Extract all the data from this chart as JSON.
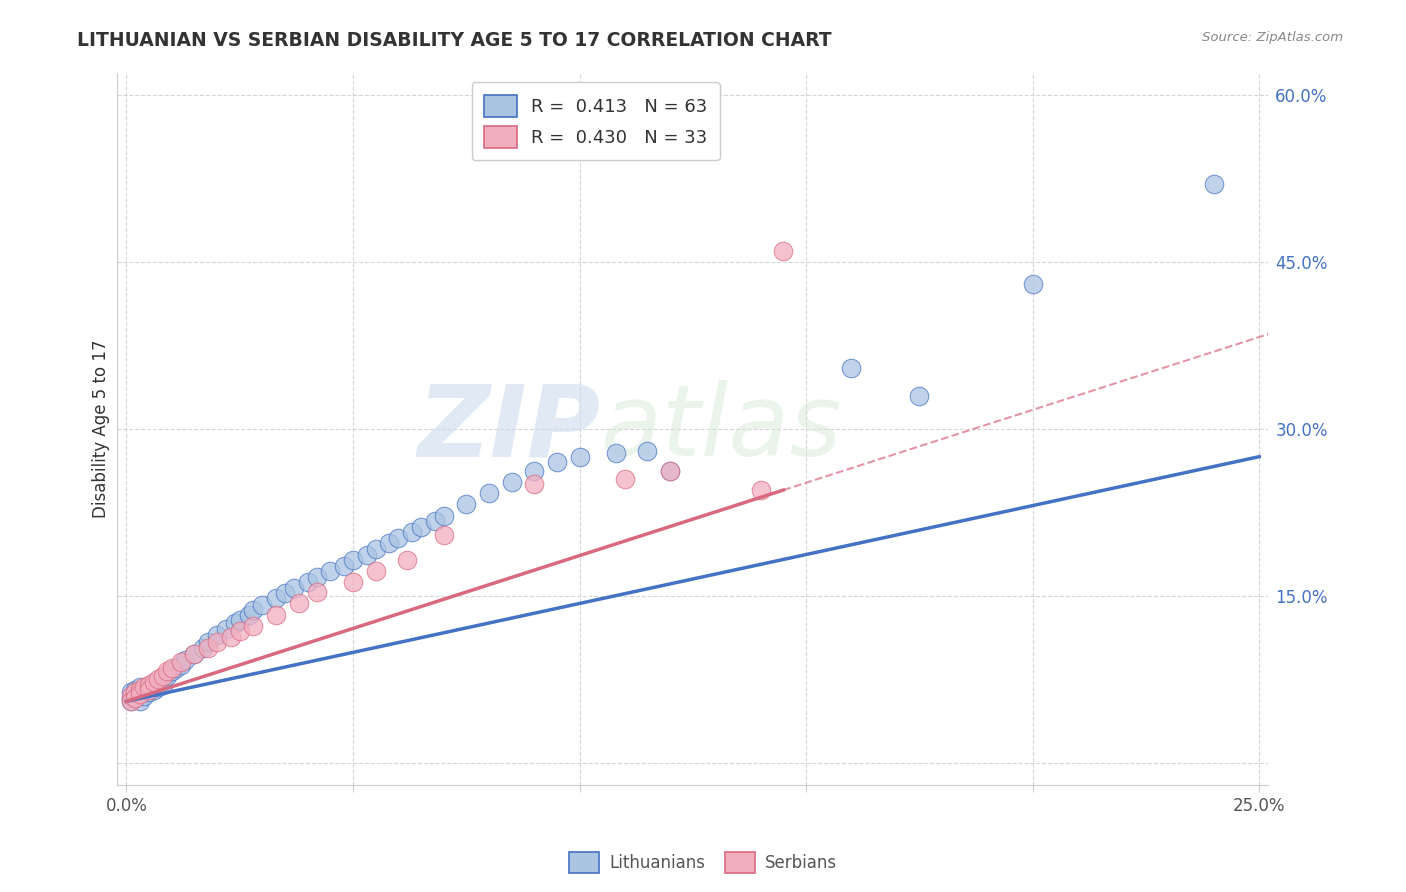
{
  "title": "LITHUANIAN VS SERBIAN DISABILITY AGE 5 TO 17 CORRELATION CHART",
  "source_text": "Source: ZipAtlas.com",
  "ylabel": "Disability Age 5 to 17",
  "xlim": [
    -0.002,
    0.252
  ],
  "ylim": [
    -0.02,
    0.62
  ],
  "xticks": [
    0.0,
    0.05,
    0.1,
    0.15,
    0.2,
    0.25
  ],
  "xticklabels": [
    "0.0%",
    "",
    "",
    "",
    "",
    "25.0%"
  ],
  "yticks_right": [
    0.0,
    0.15,
    0.3,
    0.45,
    0.6
  ],
  "yticklabels_right": [
    "",
    "15.0%",
    "30.0%",
    "45.0%",
    "60.0%"
  ],
  "lithuanian_color": "#aac4e2",
  "serbian_color": "#f2afc0",
  "trend_lith_color": "#4472c4",
  "trend_serb_color": "#d9697f",
  "R_lith": "0.413",
  "N_lith": "63",
  "R_serb": "0.430",
  "N_serb": "33",
  "watermark_zip": "ZIP",
  "watermark_atlas": "atlas",
  "background_color": "#ffffff",
  "grid_color": "#cccccc",
  "lith_trend_x0": 0.0,
  "lith_trend_y0": 0.055,
  "lith_trend_x1": 0.25,
  "lith_trend_y1": 0.275,
  "serb_trend_x0": 0.0,
  "serb_trend_y0": 0.055,
  "serb_trend_x1": 0.145,
  "serb_trend_y1": 0.245,
  "lith_x": [
    0.001,
    0.001,
    0.001,
    0.002,
    0.002,
    0.002,
    0.003,
    0.003,
    0.003,
    0.004,
    0.004,
    0.005,
    0.005,
    0.006,
    0.006,
    0.007,
    0.007,
    0.008,
    0.008,
    0.009,
    0.01,
    0.011,
    0.012,
    0.013,
    0.015,
    0.017,
    0.018,
    0.02,
    0.022,
    0.024,
    0.025,
    0.027,
    0.028,
    0.03,
    0.033,
    0.035,
    0.037,
    0.04,
    0.042,
    0.045,
    0.048,
    0.05,
    0.053,
    0.055,
    0.058,
    0.06,
    0.063,
    0.065,
    0.068,
    0.07,
    0.075,
    0.08,
    0.085,
    0.09,
    0.095,
    0.1,
    0.108,
    0.115,
    0.12,
    0.16,
    0.175,
    0.2,
    0.24
  ],
  "lith_y": [
    0.058,
    0.063,
    0.055,
    0.06,
    0.065,
    0.058,
    0.062,
    0.068,
    0.055,
    0.065,
    0.06,
    0.068,
    0.063,
    0.07,
    0.065,
    0.072,
    0.068,
    0.075,
    0.07,
    0.078,
    0.082,
    0.085,
    0.088,
    0.092,
    0.098,
    0.103,
    0.108,
    0.115,
    0.12,
    0.125,
    0.128,
    0.133,
    0.137,
    0.142,
    0.148,
    0.152,
    0.157,
    0.162,
    0.167,
    0.172,
    0.177,
    0.182,
    0.187,
    0.192,
    0.197,
    0.202,
    0.207,
    0.212,
    0.217,
    0.222,
    0.232,
    0.242,
    0.252,
    0.262,
    0.27,
    0.275,
    0.278,
    0.28,
    0.262,
    0.355,
    0.33,
    0.43,
    0.52
  ],
  "serb_x": [
    0.001,
    0.001,
    0.002,
    0.002,
    0.003,
    0.003,
    0.004,
    0.005,
    0.005,
    0.006,
    0.007,
    0.008,
    0.009,
    0.01,
    0.012,
    0.015,
    0.018,
    0.02,
    0.023,
    0.025,
    0.028,
    0.033,
    0.038,
    0.042,
    0.05,
    0.055,
    0.062,
    0.07,
    0.09,
    0.11,
    0.12,
    0.14,
    0.145
  ],
  "serb_y": [
    0.06,
    0.055,
    0.063,
    0.058,
    0.065,
    0.062,
    0.068,
    0.07,
    0.065,
    0.072,
    0.075,
    0.078,
    0.082,
    0.085,
    0.09,
    0.098,
    0.103,
    0.108,
    0.113,
    0.118,
    0.123,
    0.133,
    0.143,
    0.153,
    0.162,
    0.172,
    0.182,
    0.205,
    0.25,
    0.255,
    0.262,
    0.245,
    0.46
  ]
}
